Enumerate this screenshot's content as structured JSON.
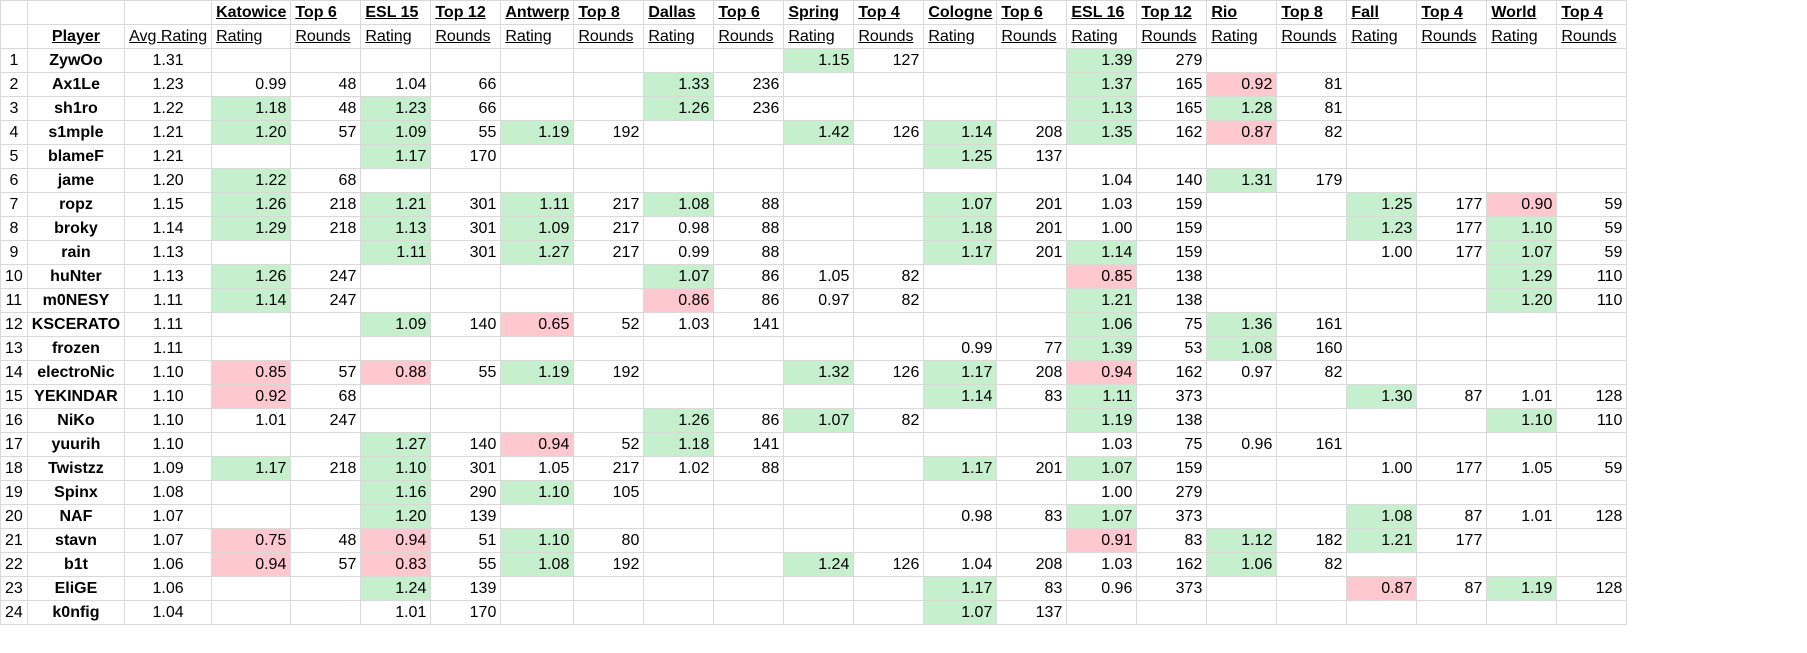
{
  "header1": [
    "",
    "",
    "",
    "Katowice",
    "Top 6",
    "ESL 15",
    "Top 12",
    "Antwerp",
    "Top 8",
    "Dallas",
    "Top 6",
    "Spring",
    "Top 4",
    "Cologne",
    "Top 6",
    "ESL 16",
    "Top 12",
    "Rio",
    "Top 8",
    "Fall",
    "Top 4",
    "World",
    "Top 4"
  ],
  "header2": [
    "",
    "Player",
    "Avg Rating",
    "Rating",
    "Rounds",
    "Rating",
    "Rounds",
    "Rating",
    "Rounds",
    "Rating",
    "Rounds",
    "Rating",
    "Rounds",
    "Rating",
    "Rounds",
    "Rating",
    "Rounds",
    "Rating",
    "Rounds",
    "Rating",
    "Rounds",
    "Rating",
    "Rounds"
  ],
  "colors": {
    "good_bg": "#c6efce",
    "good_text": "#006100",
    "bad_bg": "#ffc7ce",
    "bad_text": "#9c0006",
    "grid": "#d9d9d9"
  },
  "rows": [
    {
      "num": "1",
      "player": "ZywOo",
      "avg": "1.31",
      "c": [
        "",
        "",
        "",
        "",
        "",
        "",
        "",
        "",
        "1.15",
        "127",
        "",
        "",
        "1.39",
        "279",
        "",
        "",
        "",
        "",
        "",
        ""
      ],
      "s": [
        "",
        "",
        "",
        "",
        "",
        "",
        "",
        "",
        "g",
        "",
        "",
        "",
        "g",
        "",
        "",
        "",
        "",
        "",
        "",
        ""
      ]
    },
    {
      "num": "2",
      "player": "Ax1Le",
      "avg": "1.23",
      "c": [
        "0.99",
        "48",
        "1.04",
        "66",
        "",
        "",
        "1.33",
        "236",
        "",
        "",
        "",
        "",
        "1.37",
        "165",
        "0.92",
        "81",
        "",
        "",
        "",
        ""
      ],
      "s": [
        "",
        "",
        "",
        "",
        "",
        "",
        "g",
        "",
        "",
        "",
        "",
        "",
        "g",
        "",
        "r",
        "",
        "",
        "",
        "",
        ""
      ]
    },
    {
      "num": "3",
      "player": "sh1ro",
      "avg": "1.22",
      "c": [
        "1.18",
        "48",
        "1.23",
        "66",
        "",
        "",
        "1.26",
        "236",
        "",
        "",
        "",
        "",
        "1.13",
        "165",
        "1.28",
        "81",
        "",
        "",
        "",
        ""
      ],
      "s": [
        "g",
        "",
        "g",
        "",
        "",
        "",
        "g",
        "",
        "",
        "",
        "",
        "",
        "g",
        "",
        "g",
        "",
        "",
        "",
        "",
        ""
      ]
    },
    {
      "num": "4",
      "player": "s1mple",
      "avg": "1.21",
      "c": [
        "1.20",
        "57",
        "1.09",
        "55",
        "1.19",
        "192",
        "",
        "",
        "1.42",
        "126",
        "1.14",
        "208",
        "1.35",
        "162",
        "0.87",
        "82",
        "",
        "",
        "",
        ""
      ],
      "s": [
        "g",
        "",
        "g",
        "",
        "g",
        "",
        "",
        "",
        "g",
        "",
        "g",
        "",
        "g",
        "",
        "r",
        "",
        "",
        "",
        "",
        ""
      ]
    },
    {
      "num": "5",
      "player": "blameF",
      "avg": "1.21",
      "c": [
        "",
        "",
        "1.17",
        "170",
        "",
        "",
        "",
        "",
        "",
        "",
        "1.25",
        "137",
        "",
        "",
        "",
        "",
        "",
        "",
        "",
        ""
      ],
      "s": [
        "",
        "",
        "g",
        "",
        "",
        "",
        "",
        "",
        "",
        "",
        "g",
        "",
        "",
        "",
        "",
        "",
        "",
        "",
        "",
        ""
      ]
    },
    {
      "num": "6",
      "player": "jame",
      "avg": "1.20",
      "c": [
        "1.22",
        "68",
        "",
        "",
        "",
        "",
        "",
        "",
        "",
        "",
        "",
        "",
        "1.04",
        "140",
        "1.31",
        "179",
        "",
        "",
        "",
        ""
      ],
      "s": [
        "g",
        "",
        "",
        "",
        "",
        "",
        "",
        "",
        "",
        "",
        "",
        "",
        "",
        "",
        "g",
        "",
        "",
        "",
        "",
        ""
      ]
    },
    {
      "num": "7",
      "player": "ropz",
      "avg": "1.15",
      "c": [
        "1.26",
        "218",
        "1.21",
        "301",
        "1.11",
        "217",
        "1.08",
        "88",
        "",
        "",
        "1.07",
        "201",
        "1.03",
        "159",
        "",
        "",
        "1.25",
        "177",
        "0.90",
        "59"
      ],
      "s": [
        "g",
        "",
        "g",
        "",
        "g",
        "",
        "g",
        "",
        "",
        "",
        "g",
        "",
        "",
        "",
        "",
        "",
        "g",
        "",
        "r",
        ""
      ]
    },
    {
      "num": "8",
      "player": "broky",
      "avg": "1.14",
      "c": [
        "1.29",
        "218",
        "1.13",
        "301",
        "1.09",
        "217",
        "0.98",
        "88",
        "",
        "",
        "1.18",
        "201",
        "1.00",
        "159",
        "",
        "",
        "1.23",
        "177",
        "1.10",
        "59"
      ],
      "s": [
        "g",
        "",
        "g",
        "",
        "g",
        "",
        "",
        "",
        "",
        "",
        "g",
        "",
        "",
        "",
        "",
        "",
        "g",
        "",
        "g",
        ""
      ]
    },
    {
      "num": "9",
      "player": "rain",
      "avg": "1.13",
      "c": [
        "",
        "",
        "1.11",
        "301",
        "1.27",
        "217",
        "0.99",
        "88",
        "",
        "",
        "1.17",
        "201",
        "1.14",
        "159",
        "",
        "",
        "1.00",
        "177",
        "1.07",
        "59"
      ],
      "s": [
        "",
        "",
        "g",
        "",
        "g",
        "",
        "",
        "",
        "",
        "",
        "g",
        "",
        "g",
        "",
        "",
        "",
        "",
        "",
        "g",
        ""
      ]
    },
    {
      "num": "10",
      "player": "huNter",
      "avg": "1.13",
      "c": [
        "1.26",
        "247",
        "",
        "",
        "",
        "",
        "1.07",
        "86",
        "1.05",
        "82",
        "",
        "",
        "0.85",
        "138",
        "",
        "",
        "",
        "",
        "1.29",
        "110"
      ],
      "s": [
        "g",
        "",
        "",
        "",
        "",
        "",
        "g",
        "",
        "",
        "",
        "",
        "",
        "r",
        "",
        "",
        "",
        "",
        "",
        "g",
        ""
      ]
    },
    {
      "num": "11",
      "player": "m0NESY",
      "avg": "1.11",
      "c": [
        "1.14",
        "247",
        "",
        "",
        "",
        "",
        "0.86",
        "86",
        "0.97",
        "82",
        "",
        "",
        "1.21",
        "138",
        "",
        "",
        "",
        "",
        "1.20",
        "110"
      ],
      "s": [
        "g",
        "",
        "",
        "",
        "",
        "",
        "r",
        "",
        "",
        "",
        "",
        "",
        "g",
        "",
        "",
        "",
        "",
        "",
        "g",
        ""
      ]
    },
    {
      "num": "12",
      "player": "KSCERATO",
      "avg": "1.11",
      "c": [
        "",
        "",
        "1.09",
        "140",
        "0.65",
        "52",
        "1.03",
        "141",
        "",
        "",
        "",
        "",
        "1.06",
        "75",
        "1.36",
        "161",
        "",
        "",
        "",
        ""
      ],
      "s": [
        "",
        "",
        "g",
        "",
        "r",
        "",
        "",
        "",
        "",
        "",
        "",
        "",
        "g",
        "",
        "g",
        "",
        "",
        "",
        "",
        ""
      ]
    },
    {
      "num": "13",
      "player": "frozen",
      "avg": "1.11",
      "c": [
        "",
        "",
        "",
        "",
        "",
        "",
        "",
        "",
        "",
        "",
        "0.99",
        "77",
        "1.39",
        "53",
        "1.08",
        "160",
        "",
        "",
        "",
        ""
      ],
      "s": [
        "",
        "",
        "",
        "",
        "",
        "",
        "",
        "",
        "",
        "",
        "",
        "",
        "g",
        "",
        "g",
        "",
        "",
        "",
        "",
        ""
      ]
    },
    {
      "num": "14",
      "player": "electroNic",
      "avg": "1.10",
      "c": [
        "0.85",
        "57",
        "0.88",
        "55",
        "1.19",
        "192",
        "",
        "",
        "1.32",
        "126",
        "1.17",
        "208",
        "0.94",
        "162",
        "0.97",
        "82",
        "",
        "",
        "",
        ""
      ],
      "s": [
        "r",
        "",
        "r",
        "",
        "g",
        "",
        "",
        "",
        "g",
        "",
        "g",
        "",
        "r",
        "",
        "",
        "",
        "",
        "",
        "",
        ""
      ]
    },
    {
      "num": "15",
      "player": "YEKINDAR",
      "avg": "1.10",
      "c": [
        "0.92",
        "68",
        "",
        "",
        "",
        "",
        "",
        "",
        "",
        "",
        "1.14",
        "83",
        "1.11",
        "373",
        "",
        "",
        "1.30",
        "87",
        "1.01",
        "128"
      ],
      "s": [
        "r",
        "",
        "",
        "",
        "",
        "",
        "",
        "",
        "",
        "",
        "g",
        "",
        "g",
        "",
        "",
        "",
        "g",
        "",
        "",
        ""
      ]
    },
    {
      "num": "16",
      "player": "NiKo",
      "avg": "1.10",
      "c": [
        "1.01",
        "247",
        "",
        "",
        "",
        "",
        "1.26",
        "86",
        "1.07",
        "82",
        "",
        "",
        "1.19",
        "138",
        "",
        "",
        "",
        "",
        "1.10",
        "110"
      ],
      "s": [
        "",
        "",
        "",
        "",
        "",
        "",
        "g",
        "",
        "g",
        "",
        "",
        "",
        "g",
        "",
        "",
        "",
        "",
        "",
        "g",
        ""
      ]
    },
    {
      "num": "17",
      "player": "yuurih",
      "avg": "1.10",
      "c": [
        "",
        "",
        "1.27",
        "140",
        "0.94",
        "52",
        "1.18",
        "141",
        "",
        "",
        "",
        "",
        "1.03",
        "75",
        "0.96",
        "161",
        "",
        "",
        "",
        ""
      ],
      "s": [
        "",
        "",
        "g",
        "",
        "r",
        "",
        "g",
        "",
        "",
        "",
        "",
        "",
        "",
        "",
        "",
        "",
        "",
        "",
        "",
        ""
      ]
    },
    {
      "num": "18",
      "player": "Twistzz",
      "avg": "1.09",
      "c": [
        "1.17",
        "218",
        "1.10",
        "301",
        "1.05",
        "217",
        "1.02",
        "88",
        "",
        "",
        "1.17",
        "201",
        "1.07",
        "159",
        "",
        "",
        "1.00",
        "177",
        "1.05",
        "59"
      ],
      "s": [
        "g",
        "",
        "g",
        "",
        "",
        "",
        "",
        "",
        "",
        "",
        "g",
        "",
        "g",
        "",
        "",
        "",
        "",
        "",
        "",
        ""
      ]
    },
    {
      "num": "19",
      "player": "Spinx",
      "avg": "1.08",
      "c": [
        "",
        "",
        "1.16",
        "290",
        "1.10",
        "105",
        "",
        "",
        "",
        "",
        "",
        "",
        "1.00",
        "279",
        "",
        "",
        "",
        "",
        "",
        ""
      ],
      "s": [
        "",
        "",
        "g",
        "",
        "g",
        "",
        "",
        "",
        "",
        "",
        "",
        "",
        "",
        "",
        "",
        "",
        "",
        "",
        "",
        ""
      ]
    },
    {
      "num": "20",
      "player": "NAF",
      "avg": "1.07",
      "c": [
        "",
        "",
        "1.20",
        "139",
        "",
        "",
        "",
        "",
        "",
        "",
        "0.98",
        "83",
        "1.07",
        "373",
        "",
        "",
        "1.08",
        "87",
        "1.01",
        "128"
      ],
      "s": [
        "",
        "",
        "g",
        "",
        "",
        "",
        "",
        "",
        "",
        "",
        "",
        "",
        "g",
        "",
        "",
        "",
        "g",
        "",
        "",
        ""
      ]
    },
    {
      "num": "21",
      "player": "stavn",
      "avg": "1.07",
      "c": [
        "0.75",
        "48",
        "0.94",
        "51",
        "1.10",
        "80",
        "",
        "",
        "",
        "",
        "",
        "",
        "0.91",
        "83",
        "1.12",
        "182",
        "1.21",
        "177",
        "",
        ""
      ],
      "s": [
        "r",
        "",
        "r",
        "",
        "g",
        "",
        "",
        "",
        "",
        "",
        "",
        "",
        "r",
        "",
        "g",
        "",
        "g",
        "",
        "",
        ""
      ]
    },
    {
      "num": "22",
      "player": "b1t",
      "avg": "1.06",
      "c": [
        "0.94",
        "57",
        "0.83",
        "55",
        "1.08",
        "192",
        "",
        "",
        "1.24",
        "126",
        "1.04",
        "208",
        "1.03",
        "162",
        "1.06",
        "82",
        "",
        "",
        "",
        ""
      ],
      "s": [
        "r",
        "",
        "r",
        "",
        "g",
        "",
        "",
        "",
        "g",
        "",
        "",
        "",
        "",
        "",
        "g",
        "",
        "",
        "",
        "",
        ""
      ]
    },
    {
      "num": "23",
      "player": "EliGE",
      "avg": "1.06",
      "c": [
        "",
        "",
        "1.24",
        "139",
        "",
        "",
        "",
        "",
        "",
        "",
        "1.17",
        "83",
        "0.96",
        "373",
        "",
        "",
        "0.87",
        "87",
        "1.19",
        "128"
      ],
      "s": [
        "",
        "",
        "g",
        "",
        "",
        "",
        "",
        "",
        "",
        "",
        "g",
        "",
        "",
        "",
        "",
        "",
        "r",
        "",
        "g",
        ""
      ]
    },
    {
      "num": "24",
      "player": "k0nfig",
      "avg": "1.04",
      "c": [
        "",
        "",
        "1.01",
        "170",
        "",
        "",
        "",
        "",
        "",
        "",
        "1.07",
        "137",
        "",
        "",
        "",
        "",
        "",
        "",
        "",
        ""
      ],
      "s": [
        "",
        "",
        "",
        "",
        "",
        "",
        "",
        "",
        "",
        "",
        "g",
        "",
        "",
        "",
        "",
        "",
        "",
        "",
        "",
        ""
      ]
    }
  ]
}
